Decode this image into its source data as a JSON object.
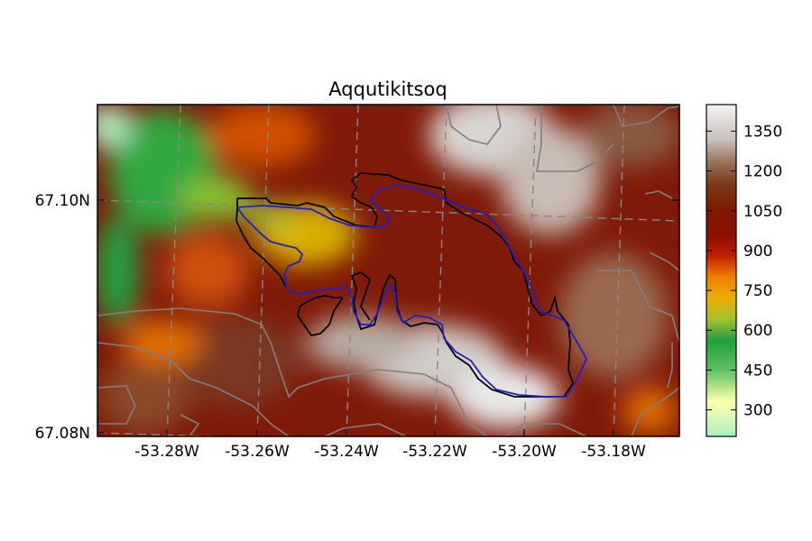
{
  "title": "Aqqutikitsoq",
  "lon_ticks": [
    "-53.28W",
    "-53.26W",
    "-53.24W",
    "-53.22W",
    "-53.20W",
    "-53.18W"
  ],
  "lat_ticks": [
    "67.10N",
    "67.08N"
  ],
  "colorbar": {
    "ticks": [
      "1350",
      "1200",
      "1050",
      "900",
      "750",
      "600",
      "450",
      "300"
    ],
    "range": [
      200,
      1450
    ],
    "stops": [
      {
        "value": 200,
        "color": "#a8f0c0"
      },
      {
        "value": 330,
        "color": "#ffffb0"
      },
      {
        "value": 450,
        "color": "#60c060"
      },
      {
        "value": 560,
        "color": "#20a040"
      },
      {
        "value": 640,
        "color": "#a0c030"
      },
      {
        "value": 720,
        "color": "#e8b000"
      },
      {
        "value": 800,
        "color": "#f08000"
      },
      {
        "value": 880,
        "color": "#c02000"
      },
      {
        "value": 950,
        "color": "#901000"
      },
      {
        "value": 1050,
        "color": "#801800"
      },
      {
        "value": 1150,
        "color": "#7a3a18"
      },
      {
        "value": 1230,
        "color": "#9a7058"
      },
      {
        "value": 1320,
        "color": "#c8c0bc"
      },
      {
        "value": 1450,
        "color": "#f4f4f4"
      }
    ]
  },
  "colors": {
    "glacier_outline_black": "#000000",
    "glacier_outline_blue": "#2020c0",
    "contour_gray": "#808080",
    "gridline": "#888888"
  }
}
